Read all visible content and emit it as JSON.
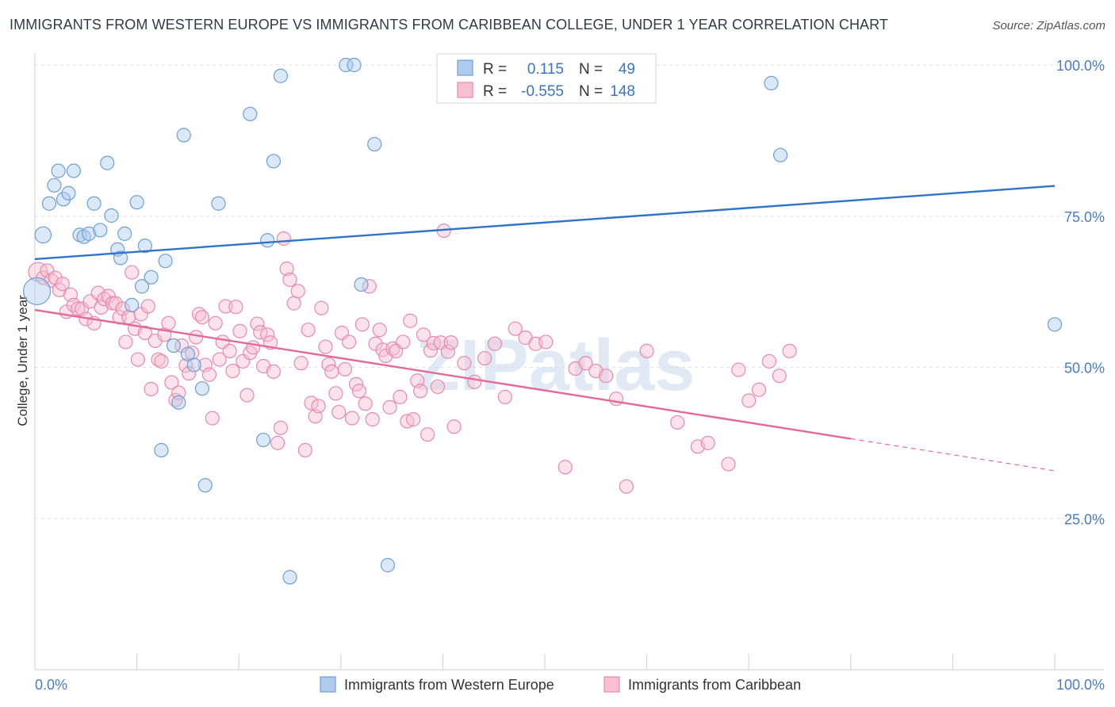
{
  "header": {
    "title": "IMMIGRANTS FROM WESTERN EUROPE VS IMMIGRANTS FROM CARIBBEAN COLLEGE, UNDER 1 YEAR CORRELATION CHART",
    "source": "Source: ZipAtlas.com"
  },
  "watermark": "ZIPatlas",
  "legend_stats": {
    "row1": {
      "r_label": "R =",
      "r_value": "0.115",
      "n_label": "N =",
      "n_value": "49"
    },
    "row2": {
      "r_label": "R =",
      "r_value": "-0.555",
      "n_label": "N =",
      "n_value": "148"
    }
  },
  "legend_bottom": {
    "series1": "Immigrants from Western Europe",
    "series2": "Immigrants from Caribbean"
  },
  "colors": {
    "blue_fill": "#aecbee",
    "blue_stroke": "#6e9fd6",
    "blue_line": "#2f74c8",
    "pink_fill": "#f6bfd2",
    "pink_stroke": "#e88aab",
    "pink_line": "#e36a96",
    "tick_label": "#4a7cc4"
  },
  "chart_data": {
    "type": "scatter",
    "title": "IMMIGRANTS FROM WESTERN EUROPE VS IMMIGRANTS FROM CARIBBEAN COLLEGE, UNDER 1 YEAR CORRELATION CHART",
    "xlabel": "",
    "ylabel": "College, Under 1 year",
    "xlim": [
      0,
      100
    ],
    "ylim": [
      0,
      102
    ],
    "x_tick_labels": [
      "0.0%",
      "100.0%"
    ],
    "y_ticks": [
      25,
      50,
      75,
      100
    ],
    "y_tick_labels": [
      "25.0%",
      "50.0%",
      "75.0%",
      "100.0%"
    ],
    "grid": true,
    "legend_placement": "top-center",
    "series": [
      {
        "name": "Immigrants from Western Europe",
        "r": 0.115,
        "n": 49,
        "trend": {
          "x": [
            0,
            100
          ],
          "y": [
            67.9,
            80.0
          ]
        },
        "points": [
          [
            0.2,
            62.6,
            20
          ],
          [
            0.8,
            71.9,
            12
          ],
          [
            1.4,
            77.1,
            10
          ],
          [
            1.9,
            80.1,
            10
          ],
          [
            2.3,
            82.5,
            10
          ],
          [
            2.8,
            77.8,
            10
          ],
          [
            3.3,
            78.8,
            10
          ],
          [
            3.8,
            82.5,
            10
          ],
          [
            4.4,
            71.9,
            10
          ],
          [
            4.8,
            71.6,
            10
          ],
          [
            5.3,
            72.1,
            10
          ],
          [
            5.8,
            77.1,
            10
          ],
          [
            6.4,
            72.7,
            10
          ],
          [
            7.1,
            83.8,
            10
          ],
          [
            7.5,
            75.1,
            10
          ],
          [
            8.1,
            69.5,
            10
          ],
          [
            8.4,
            68.1,
            10
          ],
          [
            8.8,
            72.1,
            10
          ],
          [
            9.5,
            60.3,
            10
          ],
          [
            10.0,
            77.3,
            10
          ],
          [
            10.5,
            63.4,
            10
          ],
          [
            10.8,
            70.1,
            10
          ],
          [
            11.4,
            64.9,
            10
          ],
          [
            12.4,
            36.3,
            10
          ],
          [
            12.8,
            67.6,
            10
          ],
          [
            13.6,
            53.6,
            10
          ],
          [
            14.1,
            44.2,
            10
          ],
          [
            14.6,
            88.4,
            10
          ],
          [
            15.0,
            52.2,
            10
          ],
          [
            15.6,
            50.4,
            10
          ],
          [
            16.4,
            46.5,
            10
          ],
          [
            16.7,
            30.5,
            10
          ],
          [
            18.0,
            77.1,
            10
          ],
          [
            21.1,
            91.9,
            10
          ],
          [
            22.4,
            38.0,
            10
          ],
          [
            22.8,
            71.0,
            10
          ],
          [
            23.4,
            84.1,
            10
          ],
          [
            24.1,
            98.2,
            10
          ],
          [
            25.0,
            15.3,
            10
          ],
          [
            30.5,
            100.0,
            10
          ],
          [
            31.3,
            100.0,
            10
          ],
          [
            32.0,
            63.7,
            10
          ],
          [
            33.3,
            86.9,
            10
          ],
          [
            34.6,
            17.3,
            10
          ],
          [
            50.5,
            100.0,
            10
          ],
          [
            52.8,
            100.0,
            10
          ],
          [
            72.2,
            97.0,
            10
          ],
          [
            73.1,
            85.1,
            10
          ],
          [
            100.0,
            57.1,
            10
          ]
        ]
      },
      {
        "name": "Immigrants from Caribbean",
        "r": -0.555,
        "n": 148,
        "trend": {
          "x": [
            0,
            80
          ],
          "y": [
            59.5,
            38.2
          ]
        },
        "trend_dashed": {
          "x": [
            80,
            100
          ],
          "y": [
            38.2,
            32.9
          ]
        },
        "points": [
          [
            0.3,
            65.8,
            14
          ],
          [
            0.8,
            64.8,
            10
          ],
          [
            1.2,
            66.0,
            10
          ],
          [
            1.6,
            64.4,
            10
          ],
          [
            2.0,
            64.8,
            10
          ],
          [
            2.4,
            62.8,
            10
          ],
          [
            2.7,
            63.8,
            10
          ],
          [
            3.1,
            59.2,
            10
          ],
          [
            3.5,
            62.0,
            10
          ],
          [
            3.8,
            60.3,
            10
          ],
          [
            4.2,
            59.7,
            10
          ],
          [
            4.6,
            59.7,
            10
          ],
          [
            5.0,
            58.0,
            10
          ],
          [
            5.4,
            60.9,
            10
          ],
          [
            5.8,
            57.3,
            10
          ],
          [
            6.2,
            62.3,
            10
          ],
          [
            6.5,
            59.9,
            10
          ],
          [
            6.8,
            61.3,
            10
          ],
          [
            7.2,
            61.8,
            10
          ],
          [
            7.6,
            60.6,
            10
          ],
          [
            7.9,
            60.6,
            10
          ],
          [
            8.3,
            58.3,
            10
          ],
          [
            8.6,
            59.7,
            10
          ],
          [
            8.9,
            54.2,
            10
          ],
          [
            9.2,
            58.3,
            10
          ],
          [
            9.5,
            65.7,
            10
          ],
          [
            9.8,
            56.4,
            10
          ],
          [
            10.1,
            51.3,
            10
          ],
          [
            10.4,
            58.8,
            10
          ],
          [
            10.8,
            55.7,
            10
          ],
          [
            11.1,
            60.1,
            10
          ],
          [
            11.4,
            46.4,
            10
          ],
          [
            11.8,
            54.4,
            10
          ],
          [
            12.1,
            51.3,
            10
          ],
          [
            12.4,
            51.0,
            10
          ],
          [
            12.7,
            55.4,
            10
          ],
          [
            13.1,
            57.3,
            10
          ],
          [
            13.4,
            47.5,
            10
          ],
          [
            13.8,
            44.6,
            10
          ],
          [
            14.1,
            45.8,
            10
          ],
          [
            14.4,
            53.6,
            10
          ],
          [
            14.8,
            50.3,
            10
          ],
          [
            15.1,
            49.0,
            10
          ],
          [
            15.4,
            52.4,
            10
          ],
          [
            15.8,
            55.0,
            10
          ],
          [
            16.1,
            58.8,
            10
          ],
          [
            16.4,
            58.3,
            10
          ],
          [
            16.7,
            50.4,
            10
          ],
          [
            17.1,
            48.8,
            10
          ],
          [
            17.4,
            41.6,
            10
          ],
          [
            17.7,
            57.3,
            10
          ],
          [
            18.1,
            51.3,
            10
          ],
          [
            18.4,
            54.2,
            10
          ],
          [
            18.7,
            60.1,
            10
          ],
          [
            19.1,
            52.7,
            10
          ],
          [
            19.4,
            49.4,
            10
          ],
          [
            19.7,
            60.0,
            10
          ],
          [
            20.1,
            56.0,
            10
          ],
          [
            20.4,
            51.0,
            10
          ],
          [
            20.8,
            45.4,
            10
          ],
          [
            21.1,
            52.4,
            10
          ],
          [
            21.4,
            53.3,
            10
          ],
          [
            21.8,
            57.2,
            10
          ],
          [
            22.1,
            55.8,
            10
          ],
          [
            22.4,
            50.2,
            10
          ],
          [
            22.8,
            55.4,
            10
          ],
          [
            23.1,
            54.1,
            10
          ],
          [
            23.4,
            49.3,
            10
          ],
          [
            23.8,
            37.5,
            10
          ],
          [
            24.1,
            40.0,
            10
          ],
          [
            24.4,
            71.3,
            10
          ],
          [
            24.7,
            66.3,
            10
          ],
          [
            25.0,
            64.5,
            10
          ],
          [
            25.4,
            60.6,
            10
          ],
          [
            25.8,
            62.6,
            10
          ],
          [
            26.1,
            50.7,
            10
          ],
          [
            26.5,
            36.3,
            10
          ],
          [
            26.8,
            56.2,
            10
          ],
          [
            27.1,
            44.1,
            10
          ],
          [
            27.5,
            41.9,
            10
          ],
          [
            27.8,
            43.6,
            10
          ],
          [
            28.1,
            59.8,
            10
          ],
          [
            28.5,
            53.4,
            10
          ],
          [
            28.8,
            50.5,
            10
          ],
          [
            29.1,
            49.3,
            10
          ],
          [
            29.5,
            45.7,
            10
          ],
          [
            29.8,
            42.6,
            10
          ],
          [
            30.1,
            55.7,
            10
          ],
          [
            30.4,
            49.7,
            10
          ],
          [
            30.8,
            54.2,
            10
          ],
          [
            31.1,
            41.6,
            10
          ],
          [
            31.5,
            47.2,
            10
          ],
          [
            31.8,
            46.1,
            10
          ],
          [
            32.1,
            57.1,
            10
          ],
          [
            32.4,
            44.0,
            10
          ],
          [
            32.8,
            63.4,
            10
          ],
          [
            33.1,
            41.4,
            10
          ],
          [
            33.4,
            53.9,
            10
          ],
          [
            33.8,
            56.2,
            10
          ],
          [
            34.1,
            52.9,
            10
          ],
          [
            34.4,
            51.9,
            10
          ],
          [
            34.8,
            43.4,
            10
          ],
          [
            35.1,
            53.1,
            10
          ],
          [
            35.4,
            52.7,
            10
          ],
          [
            35.8,
            45.1,
            10
          ],
          [
            36.1,
            54.2,
            10
          ],
          [
            36.5,
            41.1,
            10
          ],
          [
            36.8,
            57.7,
            10
          ],
          [
            37.1,
            41.4,
            10
          ],
          [
            37.5,
            47.8,
            10
          ],
          [
            37.8,
            46.1,
            10
          ],
          [
            38.1,
            55.4,
            10
          ],
          [
            38.5,
            38.9,
            10
          ],
          [
            38.8,
            52.8,
            10
          ],
          [
            39.1,
            54.0,
            10
          ],
          [
            39.5,
            46.8,
            10
          ],
          [
            39.8,
            54.1,
            10
          ],
          [
            40.1,
            72.6,
            10
          ],
          [
            40.5,
            52.6,
            10
          ],
          [
            40.8,
            54.1,
            10
          ],
          [
            41.1,
            40.2,
            10
          ],
          [
            42.1,
            50.7,
            10
          ],
          [
            43.1,
            47.6,
            10
          ],
          [
            44.1,
            51.5,
            10
          ],
          [
            45.1,
            53.9,
            10
          ],
          [
            46.1,
            45.1,
            10
          ],
          [
            47.1,
            56.4,
            10
          ],
          [
            48.1,
            54.9,
            10
          ],
          [
            49.1,
            53.9,
            10
          ],
          [
            50.1,
            54.2,
            10
          ],
          [
            52.0,
            33.5,
            10
          ],
          [
            53.0,
            49.8,
            10
          ],
          [
            54.0,
            50.7,
            10
          ],
          [
            55.0,
            49.4,
            10
          ],
          [
            56.0,
            48.6,
            10
          ],
          [
            57.0,
            44.8,
            10
          ],
          [
            58.0,
            30.3,
            10
          ],
          [
            60.0,
            52.7,
            10
          ],
          [
            63.0,
            40.9,
            10
          ],
          [
            65.0,
            36.9,
            10
          ],
          [
            66.0,
            37.5,
            10
          ],
          [
            68.0,
            34.0,
            10
          ],
          [
            69.0,
            49.6,
            10
          ],
          [
            70.0,
            44.5,
            10
          ],
          [
            71.0,
            46.3,
            10
          ],
          [
            72.0,
            51.0,
            10
          ],
          [
            73.0,
            48.6,
            10
          ],
          [
            74.0,
            52.7,
            10
          ]
        ]
      }
    ]
  }
}
